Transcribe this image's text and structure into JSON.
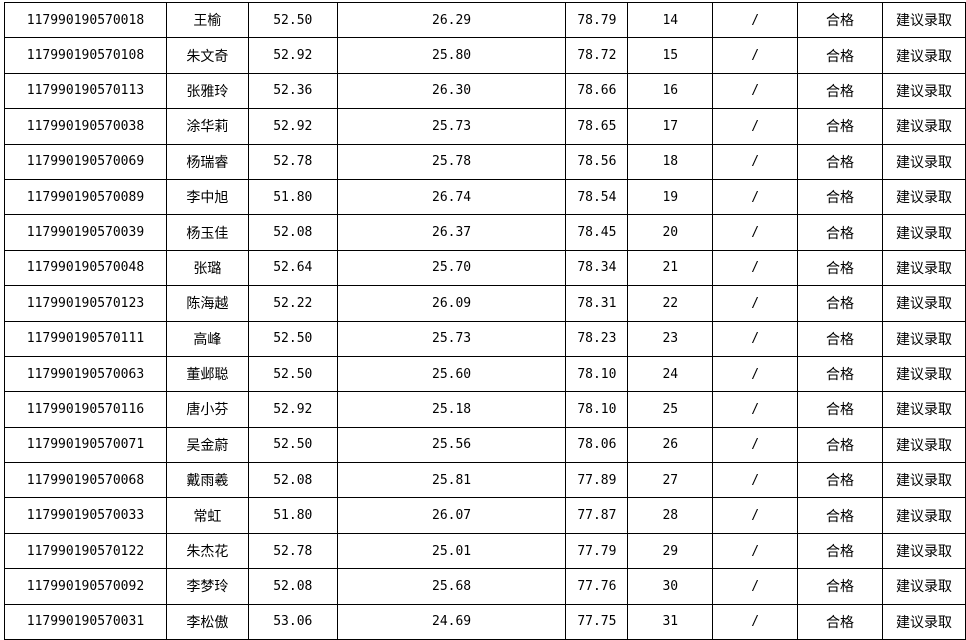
{
  "rows": [
    {
      "id": "117990190570018",
      "name": "王榆",
      "s1": "52.50",
      "s2": "26.29",
      "total": "78.79",
      "rank": "14",
      "note": "/",
      "result": "合格",
      "decision": "建议录取"
    },
    {
      "id": "117990190570108",
      "name": "朱文奇",
      "s1": "52.92",
      "s2": "25.80",
      "total": "78.72",
      "rank": "15",
      "note": "/",
      "result": "合格",
      "decision": "建议录取"
    },
    {
      "id": "117990190570113",
      "name": "张雅玲",
      "s1": "52.36",
      "s2": "26.30",
      "total": "78.66",
      "rank": "16",
      "note": "/",
      "result": "合格",
      "decision": "建议录取"
    },
    {
      "id": "117990190570038",
      "name": "涂华莉",
      "s1": "52.92",
      "s2": "25.73",
      "total": "78.65",
      "rank": "17",
      "note": "/",
      "result": "合格",
      "decision": "建议录取"
    },
    {
      "id": "117990190570069",
      "name": "杨瑞睿",
      "s1": "52.78",
      "s2": "25.78",
      "total": "78.56",
      "rank": "18",
      "note": "/",
      "result": "合格",
      "decision": "建议录取"
    },
    {
      "id": "117990190570089",
      "name": "李中旭",
      "s1": "51.80",
      "s2": "26.74",
      "total": "78.54",
      "rank": "19",
      "note": "/",
      "result": "合格",
      "decision": "建议录取"
    },
    {
      "id": "117990190570039",
      "name": "杨玉佳",
      "s1": "52.08",
      "s2": "26.37",
      "total": "78.45",
      "rank": "20",
      "note": "/",
      "result": "合格",
      "decision": "建议录取"
    },
    {
      "id": "117990190570048",
      "name": "张璐",
      "s1": "52.64",
      "s2": "25.70",
      "total": "78.34",
      "rank": "21",
      "note": "/",
      "result": "合格",
      "decision": "建议录取"
    },
    {
      "id": "117990190570123",
      "name": "陈海越",
      "s1": "52.22",
      "s2": "26.09",
      "total": "78.31",
      "rank": "22",
      "note": "/",
      "result": "合格",
      "decision": "建议录取"
    },
    {
      "id": "117990190570111",
      "name": "高峰",
      "s1": "52.50",
      "s2": "25.73",
      "total": "78.23",
      "rank": "23",
      "note": "/",
      "result": "合格",
      "decision": "建议录取"
    },
    {
      "id": "117990190570063",
      "name": "董邺聪",
      "s1": "52.50",
      "s2": "25.60",
      "total": "78.10",
      "rank": "24",
      "note": "/",
      "result": "合格",
      "decision": "建议录取"
    },
    {
      "id": "117990190570116",
      "name": "唐小芬",
      "s1": "52.92",
      "s2": "25.18",
      "total": "78.10",
      "rank": "25",
      "note": "/",
      "result": "合格",
      "decision": "建议录取"
    },
    {
      "id": "117990190570071",
      "name": "吴金蔚",
      "s1": "52.50",
      "s2": "25.56",
      "total": "78.06",
      "rank": "26",
      "note": "/",
      "result": "合格",
      "decision": "建议录取"
    },
    {
      "id": "117990190570068",
      "name": "戴雨羲",
      "s1": "52.08",
      "s2": "25.81",
      "total": "77.89",
      "rank": "27",
      "note": "/",
      "result": "合格",
      "decision": "建议录取"
    },
    {
      "id": "117990190570033",
      "name": "常虹",
      "s1": "51.80",
      "s2": "26.07",
      "total": "77.87",
      "rank": "28",
      "note": "/",
      "result": "合格",
      "decision": "建议录取"
    },
    {
      "id": "117990190570122",
      "name": "朱杰花",
      "s1": "52.78",
      "s2": "25.01",
      "total": "77.79",
      "rank": "29",
      "note": "/",
      "result": "合格",
      "decision": "建议录取"
    },
    {
      "id": "117990190570092",
      "name": "李梦玲",
      "s1": "52.08",
      "s2": "25.68",
      "total": "77.76",
      "rank": "30",
      "note": "/",
      "result": "合格",
      "decision": "建议录取"
    },
    {
      "id": "117990190570031",
      "name": "李松傲",
      "s1": "53.06",
      "s2": "24.69",
      "total": "77.75",
      "rank": "31",
      "note": "/",
      "result": "合格",
      "decision": "建议录取"
    }
  ]
}
